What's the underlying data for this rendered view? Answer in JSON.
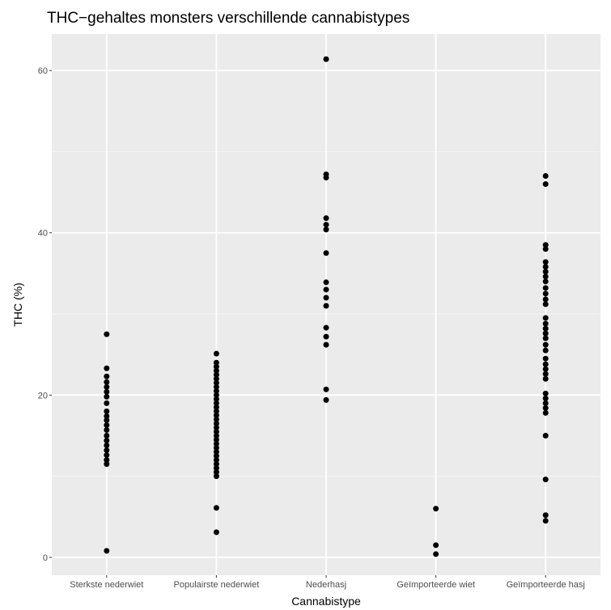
{
  "chart_data": {
    "type": "scatter",
    "title": "THC−gehaltes monsters verschillende cannabistypes",
    "xlabel": "Cannabistype",
    "ylabel": "THC (%)",
    "categories": [
      "Sterkste nederwiet",
      "Populairste nederwiet",
      "Nederhasj",
      "Geïmporteerde wiet",
      "Geïmporteerde hasj"
    ],
    "y_ticks": [
      0,
      20,
      40,
      60
    ],
    "ylim": [
      -2.2,
      64.5
    ],
    "grid": true,
    "colors": {
      "panel": "#ebebeb",
      "grid_major": "#ffffff",
      "grid_minor": "#f5f5f5",
      "point": "#000000"
    },
    "series": [
      {
        "category": "Sterkste nederwiet",
        "values": [
          27.5,
          23.3,
          22.3,
          21.6,
          21.0,
          20.4,
          19.8,
          19.0,
          18.0,
          17.4,
          16.9,
          16.3,
          15.7,
          15.0,
          14.4,
          13.8,
          13.2,
          12.6,
          12.0,
          11.5,
          0.8
        ]
      },
      {
        "category": "Populairste nederwiet",
        "values": [
          25.1,
          24.0,
          23.5,
          23.0,
          22.5,
          22.0,
          21.5,
          21.0,
          20.5,
          20.0,
          19.5,
          19.0,
          18.5,
          18.0,
          17.5,
          17.0,
          16.5,
          16.0,
          15.5,
          15.0,
          14.5,
          14.0,
          13.5,
          13.0,
          12.5,
          12.0,
          11.5,
          11.0,
          10.5,
          10.0,
          6.1,
          3.1
        ]
      },
      {
        "category": "Nederhasj",
        "values": [
          61.4,
          47.2,
          46.8,
          41.8,
          41.0,
          40.4,
          37.5,
          33.9,
          33.0,
          32.0,
          31.0,
          28.3,
          27.2,
          26.2,
          20.7,
          19.4
        ]
      },
      {
        "category": "Geïmporteerde wiet",
        "values": [
          6.0,
          1.5,
          0.4
        ]
      },
      {
        "category": "Geïmporteerde hasj",
        "values": [
          47.0,
          46.0,
          38.5,
          38.0,
          36.4,
          35.8,
          35.2,
          34.6,
          34.0,
          33.2,
          32.5,
          31.8,
          31.2,
          29.5,
          28.8,
          28.2,
          27.6,
          27.0,
          26.2,
          25.5,
          24.5,
          23.8,
          23.2,
          22.6,
          22.0,
          20.2,
          19.6,
          19.0,
          18.4,
          17.8,
          15.0,
          9.6,
          5.2,
          4.5
        ]
      }
    ]
  }
}
